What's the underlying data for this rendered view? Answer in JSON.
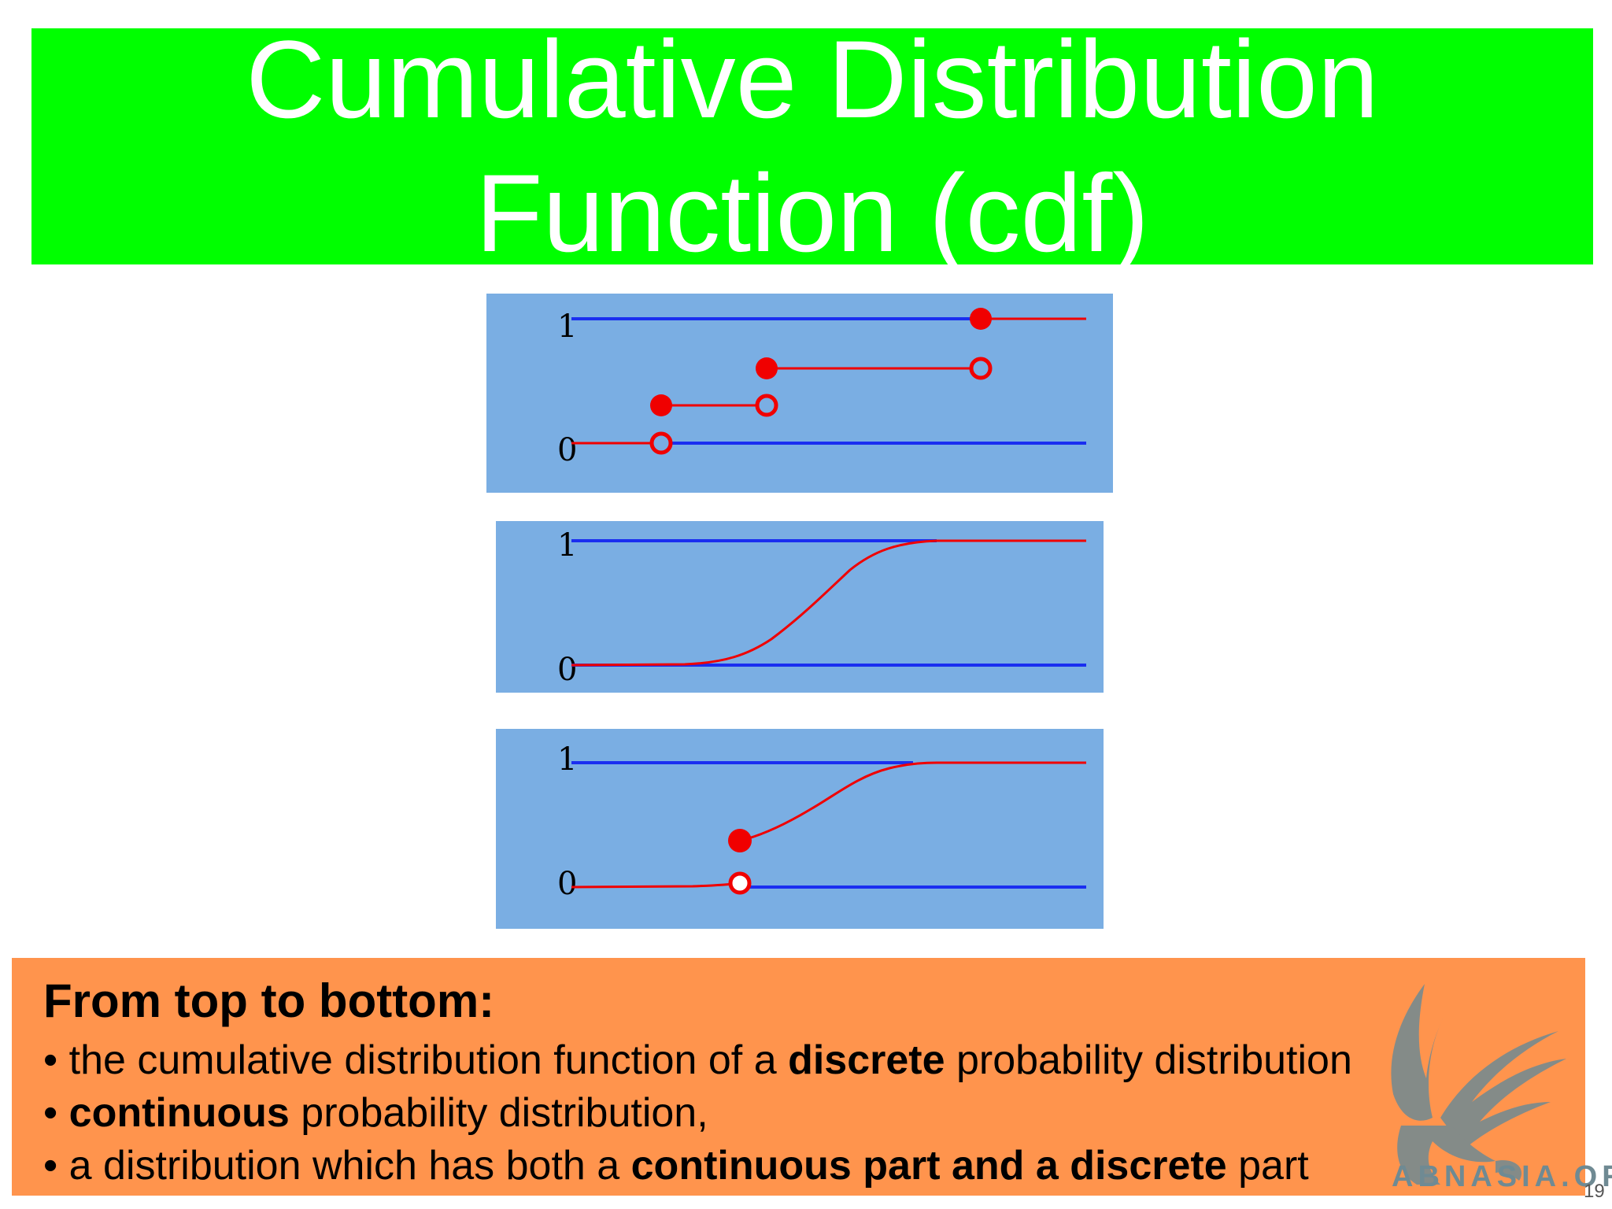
{
  "title": {
    "line1": "Cumulative Distribution",
    "line2": "Function (cdf)"
  },
  "diagrams": [
    {
      "name": "discrete",
      "tick_top": "1",
      "tick_bottom": "0"
    },
    {
      "name": "continuous",
      "tick_top": "1",
      "tick_bottom": "0"
    },
    {
      "name": "mixed",
      "tick_top": "1",
      "tick_bottom": "0"
    }
  ],
  "caption": {
    "heading": "From top to bottom:",
    "line1": {
      "bullet": "• ",
      "before": "the cumulative distribution function of a ",
      "bold": "discrete",
      "after": " probability distribution"
    },
    "line2": {
      "bullet": "• ",
      "bold": "continuous",
      "after": " probability distribution,"
    },
    "line3": {
      "bullet": "• ",
      "before": "a distribution which has both a ",
      "bold": "continuous part and a discrete",
      "after": " part"
    }
  },
  "watermark": "ABNASIA.ORG",
  "slide_number": "19",
  "colors": {
    "title_banner": "#00ff00",
    "panel_background": "#7aaee3",
    "axis_line": "#1a2ef0",
    "cdf_curve": "#f00000",
    "caption_background": "#ff944d"
  }
}
